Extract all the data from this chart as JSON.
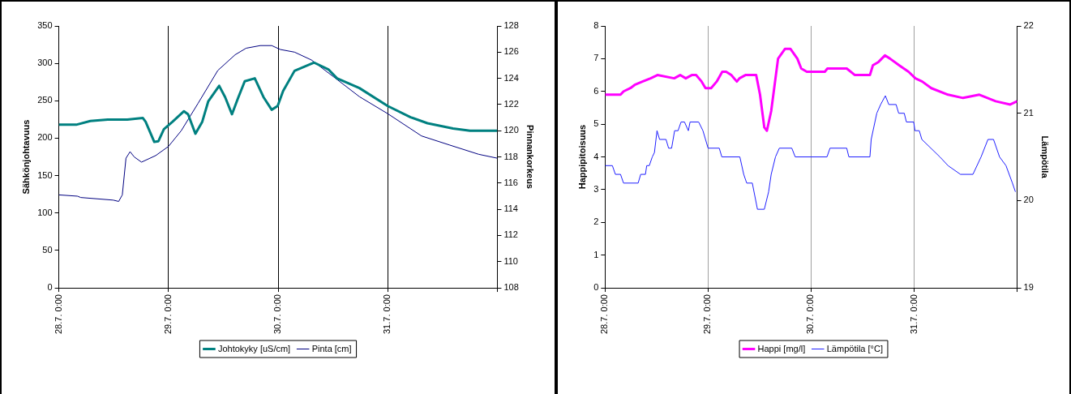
{
  "chart_data": [
    {
      "type": "line",
      "ylabel": "Sähkönjohtavuus",
      "y2label": "Pinnankorkeus",
      "xlim": [
        "--07-28T00:00",
        "--08-01T00:00"
      ],
      "xticks": [
        {
          "value": "--07-28T00:00",
          "label": "28.7. 0:00"
        },
        {
          "value": "--07-29T00:00",
          "label": "29.7. 0:00"
        },
        {
          "value": "--07-30T00:00",
          "label": "30.7. 0:00"
        },
        {
          "value": "--07-31T00:00",
          "label": "31.7. 0:00"
        },
        {
          "value": "--08-01T00:00",
          "label": null
        }
      ],
      "ylim": [
        0,
        350
      ],
      "yticks": [
        0,
        50,
        100,
        150,
        200,
        250,
        300,
        350
      ],
      "y2lim": [
        108,
        128
      ],
      "y2ticks": [
        108,
        110,
        112,
        114,
        116,
        118,
        120,
        122,
        124,
        126,
        128
      ],
      "grid": "x",
      "legend": "bottom",
      "series": [
        {
          "name": "Johtokyky [uS/cm]",
          "color": "#008080",
          "x": [
            "--07-28T00:00",
            "--07-28T03:48",
            "--07-28T06:54",
            "--07-28T10:42",
            "--07-28T15:00",
            "--07-28T18:24",
            "--07-28T19:00",
            "--07-28T20:54",
            "--07-28T21:48",
            "--07-28T23:00",
            "--07-29T00:54",
            "--07-29T03:24",
            "--07-29T04:18",
            "--07-29T05:54",
            "--07-29T07:24",
            "--07-29T08:42",
            "--07-29T11:06",
            "--07-29T12:24",
            "--07-29T13:54",
            "--07-29T15:12",
            "--07-29T16:42",
            "--07-29T18:54",
            "--07-29T20:48",
            "--07-29T22:36",
            "--07-29T23:54",
            "--07-30T01:06",
            "--07-30T03:36",
            "--07-30T07:54",
            "--07-30T11:00",
            "--07-30T12:54",
            "--07-30T17:48",
            "--07-31T00:00",
            "--07-31T05:00",
            "--07-31T08:42",
            "--07-31T14:18",
            "--07-31T18:00",
            "--08-01T00:00"
          ],
          "values": [
            218,
            218,
            223,
            225,
            225,
            227,
            222,
            195,
            196,
            212,
            222,
            236,
            232,
            206,
            222,
            249,
            270,
            255,
            232,
            253,
            276,
            280,
            255,
            238,
            243,
            263,
            290,
            301,
            292,
            280,
            267,
            243,
            228,
            220,
            213,
            210,
            210
          ]
        },
        {
          "name": "Pinta [cm]",
          "color": "#000080",
          "axis": "y2",
          "x": [
            "--07-28T00:00",
            "--07-28T04:06",
            "--07-28T04:48",
            "--07-28T11:54",
            "--07-28T13:06",
            "--07-28T13:54",
            "--07-28T14:42",
            "--07-28T15:36",
            "--07-28T16:30",
            "--07-28T18:06",
            "--07-28T21:12",
            "--07-29T00:00",
            "--07-29T02:48",
            "--07-29T06:30",
            "--07-29T10:48",
            "--07-29T14:36",
            "--07-29T17:00",
            "--07-29T20:06",
            "--07-29T22:36",
            "--07-30T00:30",
            "--07-30T03:36",
            "--07-30T07:18",
            "--07-30T12:12",
            "--07-30T17:48",
            "--07-31T00:00",
            "--07-31T07:24",
            "--07-31T13:36",
            "--07-31T19:54",
            "--08-01T00:00"
          ],
          "values": [
            115.1,
            115.0,
            114.9,
            114.7,
            114.6,
            115.1,
            117.9,
            118.4,
            118.0,
            117.6,
            118.1,
            118.8,
            120.0,
            122.1,
            124.6,
            125.8,
            126.3,
            126.5,
            126.5,
            126.2,
            126.0,
            125.4,
            124.1,
            122.6,
            121.3,
            119.6,
            118.9,
            118.2,
            117.9
          ]
        }
      ]
    },
    {
      "type": "line",
      "ylabel": "Happipitoisuus",
      "y2label": "Lämpötila",
      "xlim": [
        "--07-28T00:00",
        "--08-01T00:00"
      ],
      "xticks": [
        {
          "value": "--07-28T00:00",
          "label": "28.7. 0:00"
        },
        {
          "value": "--07-29T00:00",
          "label": "29.7. 0:00"
        },
        {
          "value": "--07-30T00:00",
          "label": "30.7. 0:00"
        },
        {
          "value": "--07-31T00:00",
          "label": "31.7. 0:00"
        },
        {
          "value": "--08-01T00:00",
          "label": null
        }
      ],
      "ylim": [
        0,
        8
      ],
      "yticks": [
        0,
        1,
        2,
        3,
        4,
        5,
        6,
        7,
        8
      ],
      "y2lim": [
        19,
        22
      ],
      "y2ticks": [
        19,
        20,
        21,
        22
      ],
      "grid": "x",
      "legend": "bottom",
      "series": [
        {
          "name": "Happi [mg/l]",
          "color": "#ff00ff",
          "x": [
            "--07-28T00:00",
            "--07-28T03:36",
            "--07-28T04:18",
            "--07-28T05:54",
            "--07-28T06:54",
            "--07-28T08:42",
            "--07-28T10:36",
            "--07-28T12:12",
            "--07-28T16:06",
            "--07-28T17:30",
            "--07-28T18:48",
            "--07-28T20:12",
            "--07-28T21:12",
            "--07-28T22:30",
            "--07-28T23:24",
            "--07-29T00:42",
            "--07-29T02:00",
            "--07-29T03:18",
            "--07-29T04:12",
            "--07-29T05:24",
            "--07-29T06:42",
            "--07-29T07:18",
            "--07-29T08:42",
            "--07-29T11:12",
            "--07-29T12:06",
            "--07-29T13:06",
            "--07-29T13:42",
            "--07-29T14:42",
            "--07-29T16:18",
            "--07-29T17:54",
            "--07-29T19:12",
            "--07-29T20:48",
            "--07-29T21:42",
            "--07-29T23:00",
            "--07-30T03:12",
            "--07-30T03:48",
            "--07-30T08:18",
            "--07-30T10:12",
            "--07-30T13:42",
            "--07-30T14:24",
            "--07-30T15:42",
            "--07-30T17:12",
            "--07-30T18:24",
            "--07-30T20:30",
            "--07-30T22:42",
            "--07-31T00:18",
            "--07-31T01:54",
            "--07-31T04:00",
            "--07-31T07:54",
            "--07-31T11:24",
            "--07-31T15:12",
            "--07-31T19:00",
            "--07-31T22:24",
            "--08-01T00:00"
          ],
          "values": [
            5.9,
            5.9,
            6.0,
            6.1,
            6.2,
            6.3,
            6.4,
            6.5,
            6.4,
            6.5,
            6.4,
            6.5,
            6.5,
            6.3,
            6.1,
            6.1,
            6.3,
            6.6,
            6.6,
            6.5,
            6.3,
            6.4,
            6.5,
            6.5,
            5.9,
            4.9,
            4.8,
            5.4,
            7.0,
            7.3,
            7.3,
            7.0,
            6.7,
            6.6,
            6.6,
            6.7,
            6.7,
            6.5,
            6.5,
            6.8,
            6.9,
            7.1,
            7.0,
            6.8,
            6.6,
            6.4,
            6.3,
            6.1,
            5.9,
            5.8,
            5.9,
            5.7,
            5.6,
            5.7
          ]
        },
        {
          "name": "Lämpötila [°C]",
          "color": "#1f1fff",
          "axis": "y2",
          "x": [
            "--07-28T00:00",
            "--07-28T01:42",
            "--07-28T02:24",
            "--07-28T03:36",
            "--07-28T04:18",
            "--07-28T07:42",
            "--07-28T08:18",
            "--07-28T09:24",
            "--07-28T09:42",
            "--07-28T10:18",
            "--07-28T11:00",
            "--07-28T11:30",
            "--07-28T12:06",
            "--07-28T12:42",
            "--07-28T14:12",
            "--07-28T14:48",
            "--07-28T15:30",
            "--07-28T16:12",
            "--07-28T17:00",
            "--07-28T17:42",
            "--07-28T18:30",
            "--07-28T19:24",
            "--07-28T19:48",
            "--07-28T21:48",
            "--07-28T22:48",
            "--07-28T23:24",
            "--07-29T00:00",
            "--07-29T02:36",
            "--07-29T03:12",
            "--07-29T07:24",
            "--07-29T08:18",
            "--07-29T09:00",
            "--07-29T10:18",
            "--07-29T11:30",
            "--07-29T13:06",
            "--07-29T14:06",
            "--07-29T14:42",
            "--07-29T15:42",
            "--07-29T16:36",
            "--07-29T19:30",
            "--07-29T20:18",
            "--07-30T03:42",
            "--07-30T04:24",
            "--07-30T08:18",
            "--07-30T08:48",
            "--07-30T13:42",
            "--07-30T14:00",
            "--07-30T15:18",
            "--07-30T16:12",
            "--07-30T17:18",
            "--07-30T18:06",
            "--07-30T19:48",
            "--07-30T20:24",
            "--07-30T21:42",
            "--07-30T22:12",
            "--07-30T23:54",
            "--07-31T00:12",
            "--07-31T01:12",
            "--07-31T01:48",
            "--07-31T06:00",
            "--07-31T07:54",
            "--07-31T10:48",
            "--07-31T13:42",
            "--07-31T15:36",
            "--07-31T17:12",
            "--07-31T18:30",
            "--07-31T19:54",
            "--07-31T21:24",
            "--07-31T22:54",
            "--07-31T23:36"
          ],
          "values": [
            20.4,
            20.4,
            20.3,
            20.3,
            20.2,
            20.2,
            20.3,
            20.3,
            20.4,
            20.4,
            20.5,
            20.55,
            20.8,
            20.7,
            20.7,
            20.6,
            20.6,
            20.8,
            20.8,
            20.9,
            20.9,
            20.8,
            20.9,
            20.9,
            20.8,
            20.7,
            20.6,
            20.6,
            20.5,
            20.5,
            20.3,
            20.2,
            20.2,
            19.9,
            19.9,
            20.1,
            20.3,
            20.5,
            20.6,
            20.6,
            20.5,
            20.5,
            20.6,
            20.6,
            20.5,
            20.5,
            20.7,
            21.0,
            21.1,
            21.2,
            21.1,
            21.1,
            21.0,
            21.0,
            20.9,
            20.9,
            20.8,
            20.8,
            20.7,
            20.5,
            20.4,
            20.3,
            20.3,
            20.5,
            20.7,
            20.7,
            20.5,
            20.4,
            20.2,
            20.1
          ]
        }
      ]
    }
  ]
}
